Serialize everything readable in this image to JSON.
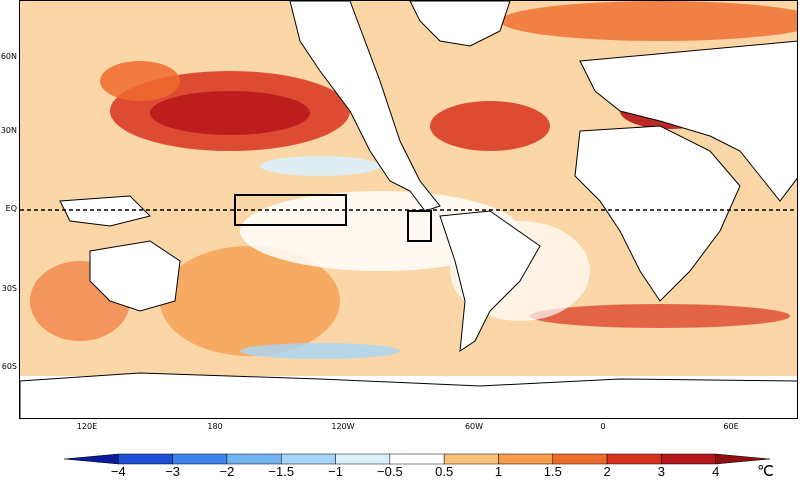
{
  "map": {
    "latitude_labels": [
      "60N",
      "30N",
      "EQ",
      "30S",
      "60S"
    ],
    "longitude_labels": [
      "120E",
      "180",
      "120W",
      "60W",
      "0",
      "60E"
    ],
    "boxes": [
      "Niño 3.4 box",
      "Niño 1+2 box"
    ],
    "equator_line": "dashed"
  },
  "legend": {
    "ticks": [
      "−4",
      "−3",
      "−2",
      "−1.5",
      "−1",
      "−0.5",
      "0.5",
      "1",
      "1.5",
      "2",
      "3",
      "4"
    ],
    "unit": "℃",
    "colors": [
      "#0a1a9a",
      "#1f4fd6",
      "#3f84ea",
      "#74b3f2",
      "#a6d6f7",
      "#d9f0fb",
      "#ffffff",
      "#f9c27a",
      "#f59b4a",
      "#ef6a2d",
      "#d8321f",
      "#b5161a",
      "#8f0f14"
    ]
  }
}
